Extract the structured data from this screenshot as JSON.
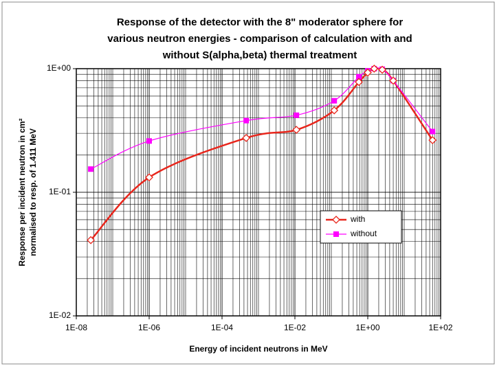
{
  "chart_data": {
    "type": "line",
    "title": [
      "Response of the detector with the 8\" moderator sphere for",
      "various neutron energies - comparison of calculation with and",
      "without S(alpha,beta) thermal treatment"
    ],
    "x_label": "Energy of incident neutrons in MeV",
    "y_label": [
      "Response per incident neutron in cm²",
      "normalised to resp. of 1.411 MeV"
    ],
    "x": [
      2.5e-08,
      1e-06,
      0.00046,
      0.011,
      0.12,
      0.57,
      1,
      1.5,
      2.5,
      5,
      60
    ],
    "series": [
      {
        "name": "with",
        "color": "#e8261c",
        "marker": "diamond",
        "values": [
          0.041,
          0.132,
          0.275,
          0.32,
          0.46,
          0.78,
          0.93,
          1.0,
          0.98,
          0.8,
          0.264
        ]
      },
      {
        "name": "without",
        "color": "#ff00ff",
        "marker": "square",
        "values": [
          0.154,
          0.26,
          0.38,
          0.42,
          0.55,
          0.86,
          0.96,
          1.0,
          0.99,
          0.8,
          0.31
        ]
      }
    ],
    "xlim": [
      1e-08,
      100
    ],
    "ylim": [
      0.01,
      1
    ],
    "xscale": "log",
    "yscale": "log",
    "xticks": [
      {
        "value": 1e-08,
        "label": "1E-08"
      },
      {
        "value": 1e-06,
        "label": "1E-06"
      },
      {
        "value": 0.0001,
        "label": "1E-04"
      },
      {
        "value": 0.01,
        "label": "1E-02"
      },
      {
        "value": 1,
        "label": "1E+00"
      },
      {
        "value": 100,
        "label": "1E+02"
      }
    ],
    "yticks": [
      {
        "value": 0.01,
        "label": "1E-02"
      },
      {
        "value": 0.1,
        "label": "1E-01"
      },
      {
        "value": 1,
        "label": "1E+00"
      }
    ],
    "grid": true,
    "legend": "right"
  }
}
